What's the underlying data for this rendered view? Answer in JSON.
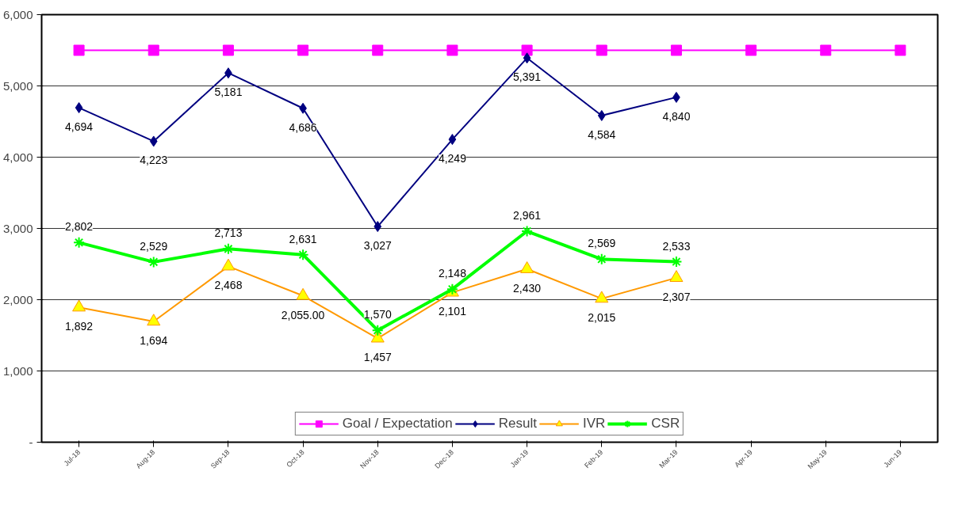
{
  "chart_data": {
    "type": "line",
    "categories": [
      "Jul-18",
      "Aug-18",
      "Sep-18",
      "Oct-18",
      "Nov-18",
      "Dec-18",
      "Jan-19",
      "Feb-19",
      "Mar-19",
      "Apr-19",
      "May-19",
      "Jun-19"
    ],
    "ylim": [
      0,
      6000
    ],
    "yticks": [
      {
        "value": 0,
        "label": "-"
      },
      {
        "value": 1000,
        "label": "1,000"
      },
      {
        "value": 2000,
        "label": "2,000"
      },
      {
        "value": 3000,
        "label": "3,000"
      },
      {
        "value": 4000,
        "label": "4,000"
      },
      {
        "value": 5000,
        "label": "5,000"
      },
      {
        "value": 6000,
        "label": "6,000"
      }
    ],
    "grid": "y",
    "legend": "bottom",
    "series": [
      {
        "name": "Goal / Expectation",
        "color": "#ff00ff",
        "marker": "square",
        "values": [
          5500,
          5500,
          5500,
          5500,
          5500,
          5500,
          5500,
          5500,
          5500,
          5500,
          5500,
          5500
        ]
      },
      {
        "name": "Result",
        "color": "#000080",
        "marker": "diamond",
        "values": [
          4694,
          4223,
          5181,
          4686,
          3027,
          4249,
          5391,
          4584,
          4840,
          null,
          null,
          null
        ],
        "value_labels": [
          "4,694",
          "4,223",
          "5,181",
          "4,686",
          "3,027",
          "4,249",
          "5,391",
          "4,584",
          "4,840",
          null,
          null,
          null
        ]
      },
      {
        "name": "IVR",
        "color": "#ff9900",
        "marker": "triangle",
        "values": [
          1892,
          1694,
          2468,
          2055,
          1457,
          2101,
          2430,
          2015,
          2307,
          null,
          null,
          null
        ],
        "value_labels": [
          "1,892",
          "1,694",
          "2,468",
          "2,055.00",
          "1,457",
          "2,101",
          "2,430",
          "2,015",
          "2,307",
          null,
          null,
          null
        ]
      },
      {
        "name": "CSR",
        "color": "#00ff00",
        "marker": "cross",
        "values": [
          2802,
          2529,
          2713,
          2631,
          1570,
          2148,
          2961,
          2569,
          2533,
          null,
          null,
          null
        ],
        "value_labels": [
          "2,802",
          "2,529",
          "2,713",
          "2,631",
          "1,570",
          "2,148",
          "2,961",
          "2,569",
          "2,533",
          null,
          null,
          null
        ]
      }
    ]
  }
}
